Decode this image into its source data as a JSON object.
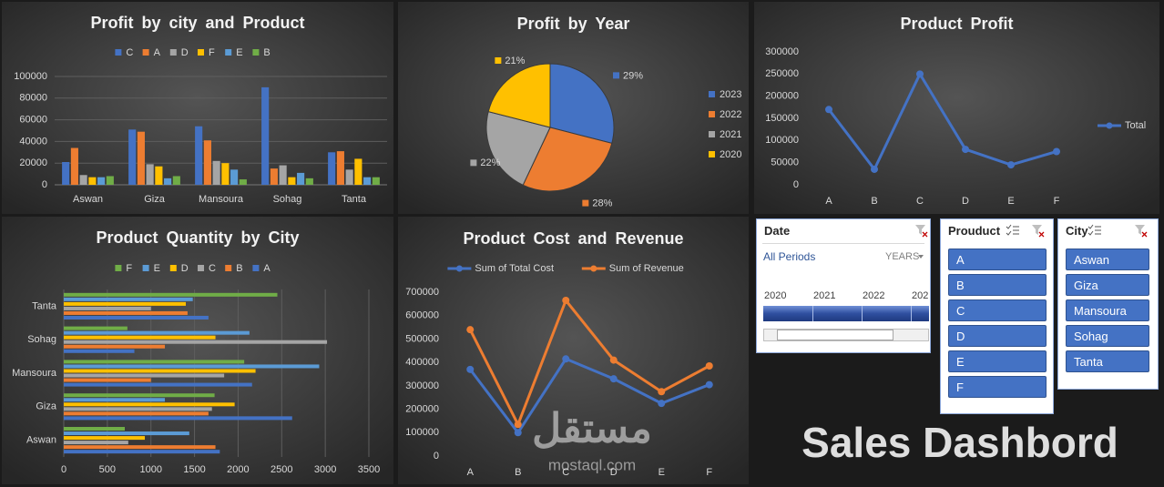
{
  "chart_data": [
    {
      "type": "bar",
      "title": "Profit by city and Product",
      "categories": [
        "Aswan",
        "Giza",
        "Mansoura",
        "Sohag",
        "Tanta"
      ],
      "series": [
        {
          "name": "C",
          "color": "#4472c4",
          "values": [
            21000,
            51000,
            54000,
            90000,
            30000
          ]
        },
        {
          "name": "A",
          "color": "#ed7d31",
          "values": [
            34000,
            49000,
            41000,
            15000,
            31000
          ]
        },
        {
          "name": "D",
          "color": "#a5a5a5",
          "values": [
            9000,
            19000,
            22000,
            18000,
            14000
          ]
        },
        {
          "name": "F",
          "color": "#ffc000",
          "values": [
            7000,
            17000,
            20000,
            7000,
            24000
          ]
        },
        {
          "name": "E",
          "color": "#5b9bd5",
          "values": [
            7000,
            6000,
            14000,
            11000,
            7000
          ]
        },
        {
          "name": "B",
          "color": "#70ad47",
          "values": [
            8000,
            8000,
            5000,
            6000,
            7000
          ]
        }
      ],
      "ylim": [
        0,
        100000
      ],
      "yticks": [
        0,
        20000,
        40000,
        60000,
        80000,
        100000
      ],
      "grid": true,
      "legend": "top"
    },
    {
      "type": "pie",
      "title": "Profit by Year",
      "categories": [
        "2023",
        "2022",
        "2021",
        "2020"
      ],
      "values": [
        29,
        28,
        22,
        21
      ],
      "value_labels": [
        "29%",
        "28%",
        "22%",
        "21%"
      ],
      "colors": [
        "#4472c4",
        "#ed7d31",
        "#a5a5a5",
        "#ffc000"
      ],
      "legend": "right"
    },
    {
      "type": "line",
      "title": "Product Profit",
      "categories": [
        "A",
        "B",
        "C",
        "D",
        "E",
        "F"
      ],
      "series": [
        {
          "name": "Total",
          "color": "#4472c4",
          "values": [
            170000,
            35000,
            250000,
            80000,
            45000,
            75000
          ]
        }
      ],
      "ylim": [
        0,
        300000
      ],
      "yticks": [
        0,
        50000,
        100000,
        150000,
        200000,
        250000,
        300000
      ],
      "grid": false,
      "legend": "right"
    },
    {
      "type": "barh",
      "title": "Product Quantity by City",
      "categories": [
        "Aswan",
        "Giza",
        "Mansoura",
        "Sohag",
        "Tanta"
      ],
      "series": [
        {
          "name": "F",
          "color": "#70ad47",
          "values": [
            700,
            1730,
            2070,
            730,
            2450
          ]
        },
        {
          "name": "E",
          "color": "#5b9bd5",
          "values": [
            1440,
            1160,
            2930,
            2130,
            1480
          ]
        },
        {
          "name": "D",
          "color": "#ffc000",
          "values": [
            930,
            1960,
            2200,
            1740,
            1400
          ]
        },
        {
          "name": "C",
          "color": "#a5a5a5",
          "values": [
            740,
            1700,
            1840,
            3020,
            1000
          ]
        },
        {
          "name": "B",
          "color": "#ed7d31",
          "values": [
            1740,
            1660,
            1000,
            1160,
            1420
          ]
        },
        {
          "name": "A",
          "color": "#4472c4",
          "values": [
            1790,
            2620,
            2160,
            810,
            1660
          ]
        }
      ],
      "xlim": [
        0,
        3500
      ],
      "xticks": [
        0,
        500,
        1000,
        1500,
        2000,
        2500,
        3000,
        3500
      ],
      "grid": true,
      "legend": "top"
    },
    {
      "type": "line",
      "title": "Product Cost and Revenue",
      "categories": [
        "A",
        "B",
        "C",
        "D",
        "E",
        "F"
      ],
      "series": [
        {
          "name": "Sum of Total Cost",
          "color": "#4472c4",
          "values": [
            370000,
            100000,
            415000,
            330000,
            225000,
            305000
          ]
        },
        {
          "name": "Sum of Revenue",
          "color": "#ed7d31",
          "values": [
            540000,
            135000,
            665000,
            410000,
            275000,
            385000
          ]
        }
      ],
      "ylim": [
        0,
        700000
      ],
      "yticks": [
        0,
        100000,
        200000,
        300000,
        400000,
        500000,
        600000,
        700000
      ],
      "grid": false,
      "legend": "top"
    }
  ],
  "slicers": [
    {
      "title": "Date",
      "selection": "All Periods",
      "level": "YEARS",
      "items": [
        "2020",
        "2021",
        "2022",
        "202"
      ]
    },
    {
      "title": "Prouduct",
      "items": [
        "A",
        "B",
        "C",
        "D",
        "E",
        "F"
      ]
    },
    {
      "title": "City",
      "items": [
        "Aswan",
        "Giza",
        "Mansoura",
        "Sohag",
        "Tanta"
      ]
    }
  ],
  "title": "Sales Dashbord",
  "watermark": {
    "arabic": "مستقل",
    "latin": "mostaql.com"
  }
}
